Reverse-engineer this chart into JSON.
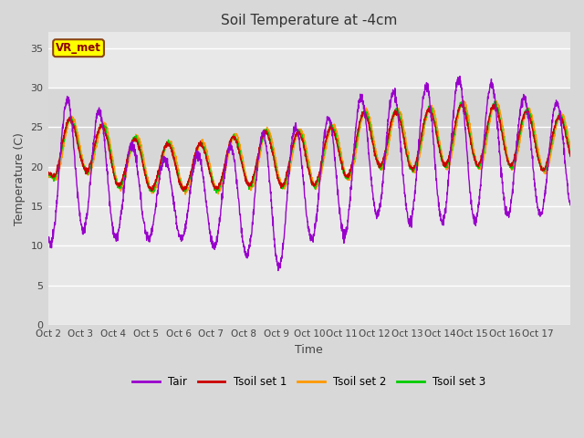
{
  "title": "Soil Temperature at -4cm",
  "xlabel": "Time",
  "ylabel": "Temperature (C)",
  "ylim": [
    0,
    37
  ],
  "yticks": [
    0,
    5,
    10,
    15,
    20,
    25,
    30,
    35
  ],
  "fig_bg_color": "#d8d8d8",
  "plot_bg_color": "#e8e8e8",
  "band_color": "#d0d0d0",
  "band_low": 20,
  "band_high": 30,
  "grid_color": "#c0c0c0",
  "annotation_text": "VR_met",
  "annotation_box_color": "#ffff00",
  "annotation_text_color": "#8B0000",
  "annotation_edge_color": "#8B4513",
  "colors": {
    "Tair": "#9900cc",
    "Tsoil1": "#cc0000",
    "Tsoil2": "#ff9900",
    "Tsoil3": "#00cc00"
  },
  "legend_labels": [
    "Tair",
    "Tsoil set 1",
    "Tsoil set 2",
    "Tsoil set 3"
  ],
  "num_days": 16,
  "ppd": 144,
  "xlabels": [
    "Oct 2",
    "Oct 3",
    "Oct 4",
    "Oct 5",
    "Oct 6",
    "Oct 7",
    "Oct 8",
    "Oct 9",
    "Oct 10",
    "Oct 11",
    "Oct 12",
    "Oct 13",
    "Oct 14",
    "Oct 15",
    "Oct 16",
    "Oct 17"
  ]
}
